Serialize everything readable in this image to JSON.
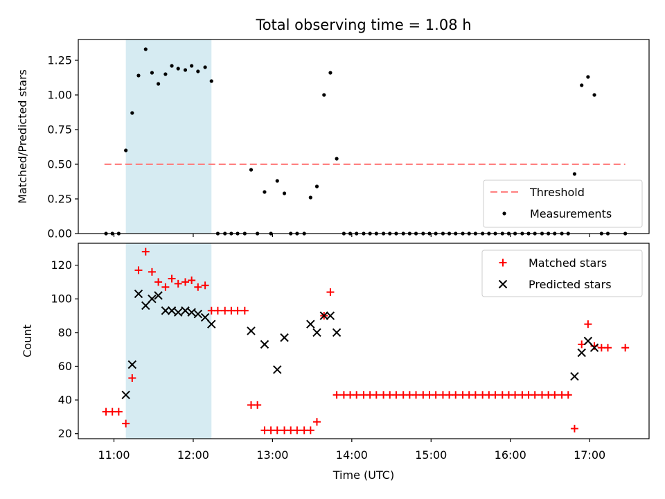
{
  "chart_data": {
    "type": "scatter",
    "title": "Total observing time = 1.08 h",
    "colors": {
      "threshold": "#ff7f7f",
      "measurements": "#000000",
      "matched": "#ff0000",
      "predicted": "#000000",
      "span_fill": "#add8e6"
    },
    "x_ticks": [
      "11:00",
      "12:00",
      "13:00",
      "14:00",
      "15:00",
      "16:00",
      "17:00"
    ],
    "x_tick_values": [
      11,
      12,
      13,
      14,
      15,
      16,
      17
    ],
    "xlim": [
      10.55,
      17.75
    ],
    "highlight_span": [
      11.15,
      12.23
    ],
    "top": {
      "ylabel": "Matched/Predicted stars",
      "ylim": [
        0,
        1.4
      ],
      "y_ticks": [
        "0.00",
        "0.25",
        "0.50",
        "0.75",
        "1.00",
        "1.25"
      ],
      "y_tick_values": [
        0,
        0.25,
        0.5,
        0.75,
        1.0,
        1.25
      ],
      "threshold": {
        "name": "Threshold",
        "value": 0.5,
        "x_range": [
          10.88,
          17.45
        ]
      },
      "series": [
        {
          "name": "Measurements",
          "marker": "dot",
          "x": [
            10.9,
            10.98,
            11.06,
            11.15,
            11.23,
            11.31,
            11.4,
            11.48,
            11.56,
            11.65,
            11.73,
            11.81,
            11.9,
            11.98,
            12.06,
            12.15,
            12.23,
            12.31,
            12.4,
            12.48,
            12.56,
            12.65,
            12.73,
            12.81,
            12.9,
            12.98,
            13.06,
            13.15,
            13.23,
            13.31,
            13.4,
            13.48,
            13.56,
            13.65,
            13.73,
            13.81,
            13.9,
            13.98,
            14.06,
            14.15,
            14.23,
            14.31,
            14.4,
            14.48,
            14.56,
            14.65,
            14.73,
            14.81,
            14.9,
            14.98,
            15.06,
            15.15,
            15.23,
            15.31,
            15.4,
            15.48,
            15.56,
            15.65,
            15.73,
            15.81,
            15.9,
            15.98,
            16.06,
            16.15,
            16.23,
            16.31,
            16.4,
            16.48,
            16.56,
            16.65,
            16.73,
            16.81,
            16.9,
            16.98,
            17.06,
            17.15,
            17.23,
            17.45
          ],
          "y": [
            0,
            0,
            0,
            0.6,
            0.87,
            1.14,
            1.33,
            1.16,
            1.08,
            1.15,
            1.21,
            1.19,
            1.18,
            1.21,
            1.17,
            1.2,
            1.1,
            0,
            0,
            0,
            0,
            0,
            0.46,
            0,
            0.3,
            0,
            0.38,
            0.29,
            0,
            0,
            0,
            0.26,
            0.34,
            1.0,
            1.16,
            0.54,
            0,
            0,
            0,
            0,
            0,
            0,
            0,
            0,
            0,
            0,
            0,
            0,
            0,
            0,
            0,
            0,
            0,
            0,
            0,
            0,
            0,
            0,
            0,
            0,
            0,
            0,
            0,
            0,
            0,
            0,
            0,
            0,
            0,
            0,
            0,
            0.43,
            1.07,
            1.13,
            1.0,
            0,
            0,
            0
          ]
        }
      ],
      "legend_position": "lower right"
    },
    "bottom": {
      "ylabel": "Count",
      "xlabel": "Time (UTC)",
      "ylim": [
        17,
        133
      ],
      "y_ticks": [
        "20",
        "40",
        "60",
        "80",
        "100",
        "120"
      ],
      "y_tick_values": [
        20,
        40,
        60,
        80,
        100,
        120
      ],
      "series": [
        {
          "name": "Matched stars",
          "marker": "plus",
          "x": [
            10.9,
            10.98,
            11.06,
            11.15,
            11.23,
            11.31,
            11.4,
            11.48,
            11.56,
            11.65,
            11.73,
            11.81,
            11.9,
            11.98,
            12.06,
            12.15,
            12.23,
            12.31,
            12.4,
            12.48,
            12.56,
            12.65,
            12.73,
            12.81,
            12.9,
            12.98,
            13.06,
            13.15,
            13.23,
            13.31,
            13.4,
            13.48,
            13.56,
            13.65,
            13.73,
            13.81,
            13.9,
            13.98,
            14.06,
            14.15,
            14.23,
            14.31,
            14.4,
            14.48,
            14.56,
            14.65,
            14.73,
            14.81,
            14.9,
            14.98,
            15.06,
            15.15,
            15.23,
            15.31,
            15.4,
            15.48,
            15.56,
            15.65,
            15.73,
            15.81,
            15.9,
            15.98,
            16.06,
            16.15,
            16.23,
            16.31,
            16.4,
            16.48,
            16.56,
            16.65,
            16.73,
            16.81,
            16.9,
            16.98,
            17.06,
            17.15,
            17.23,
            17.45
          ],
          "y": [
            33,
            33,
            33,
            26,
            53,
            117,
            128,
            116,
            110,
            107,
            112,
            109,
            110,
            111,
            107,
            108,
            93,
            93,
            93,
            93,
            93,
            93,
            37,
            37,
            22,
            22,
            22,
            22,
            22,
            22,
            22,
            22,
            27,
            90,
            104,
            43,
            43,
            43,
            43,
            43,
            43,
            43,
            43,
            43,
            43,
            43,
            43,
            43,
            43,
            43,
            43,
            43,
            43,
            43,
            43,
            43,
            43,
            43,
            43,
            43,
            43,
            43,
            43,
            43,
            43,
            43,
            43,
            43,
            43,
            43,
            43,
            23,
            73,
            85,
            72,
            71,
            71,
            71
          ]
        },
        {
          "name": "Predicted stars",
          "marker": "x",
          "x": [
            11.15,
            11.23,
            11.31,
            11.4,
            11.48,
            11.56,
            11.65,
            11.73,
            11.81,
            11.9,
            11.98,
            12.06,
            12.15,
            12.23,
            12.73,
            12.9,
            13.06,
            13.15,
            13.48,
            13.56,
            13.65,
            13.73,
            13.81,
            16.81,
            16.9,
            16.98,
            17.06
          ],
          "y": [
            43,
            61,
            103,
            96,
            100,
            102,
            93,
            93,
            92,
            93,
            92,
            91,
            89,
            85,
            81,
            73,
            58,
            77,
            85,
            80,
            90,
            90,
            80,
            54,
            68,
            75,
            71
          ]
        }
      ],
      "legend_position": "upper right"
    }
  }
}
